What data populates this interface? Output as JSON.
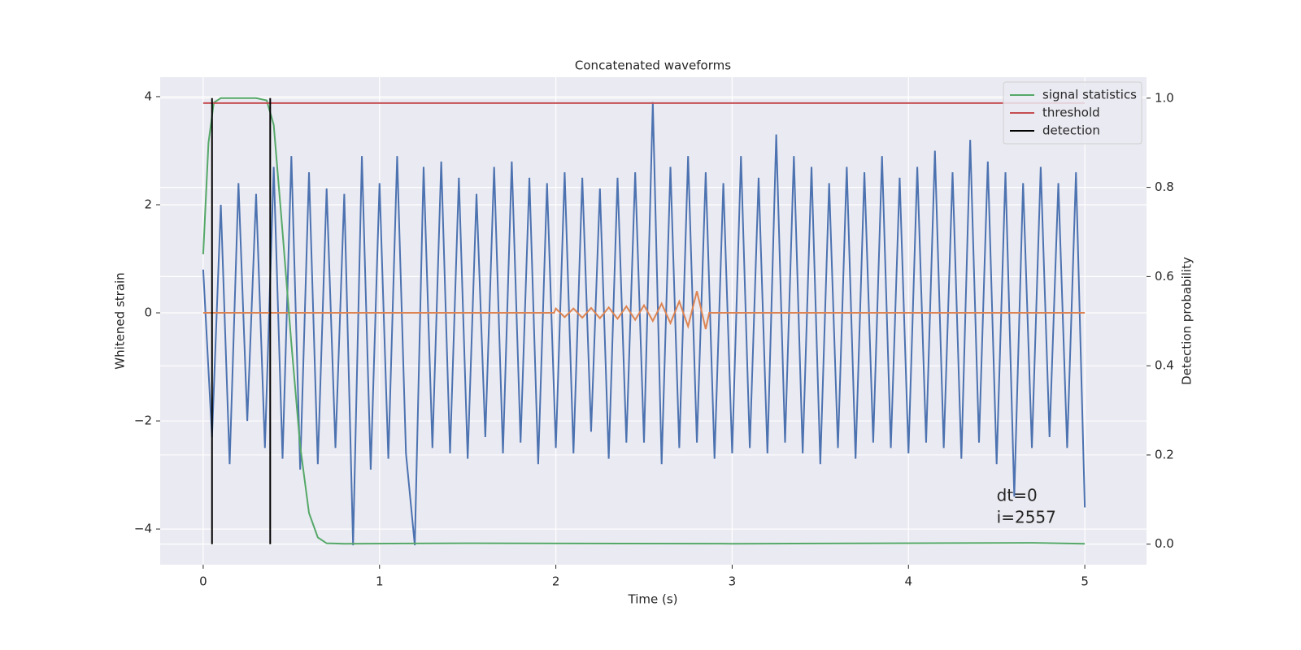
{
  "chart_data": {
    "type": "line",
    "title": "Concatenated waveforms",
    "xlabel": "Time (s)",
    "ylabel": "Whitened strain",
    "y2label": "Detection probability",
    "xlim": [
      -0.244,
      5.35
    ],
    "xticks": [
      0,
      1,
      2,
      3,
      4,
      5
    ],
    "ylim": [
      -4.66,
      4.36
    ],
    "yticks": [
      {
        "value": -4,
        "label": "−4"
      },
      {
        "value": -2,
        "label": "−2"
      },
      0,
      2,
      4
    ],
    "y2lim": [
      -0.046,
      1.047
    ],
    "y2ticks": [
      {
        "value": 0,
        "label": "0.0"
      },
      0.2,
      0.4,
      0.6,
      0.8,
      {
        "value": 1,
        "label": "1.0"
      }
    ],
    "grid": true,
    "legend": "upper right",
    "series": [
      {
        "color": "#4c72b0",
        "x": [
          0,
          0.05,
          0.1,
          0.15,
          0.2,
          0.25,
          0.3,
          0.35,
          0.4,
          0.45,
          0.5,
          0.55,
          0.6,
          0.65,
          0.7,
          0.75,
          0.8,
          0.85,
          0.9,
          0.95,
          1.0,
          1.05,
          1.1,
          1.15,
          1.2,
          1.25,
          1.3,
          1.35,
          1.4,
          1.45,
          1.5,
          1.55,
          1.6,
          1.65,
          1.7,
          1.75,
          1.8,
          1.85,
          1.9,
          1.95,
          2.0,
          2.05,
          2.1,
          2.15,
          2.2,
          2.25,
          2.3,
          2.35,
          2.4,
          2.45,
          2.5,
          2.55,
          2.6,
          2.65,
          2.7,
          2.75,
          2.8,
          2.85,
          2.9,
          2.95,
          3.0,
          3.05,
          3.1,
          3.15,
          3.2,
          3.25,
          3.3,
          3.35,
          3.4,
          3.45,
          3.5,
          3.55,
          3.6,
          3.65,
          3.7,
          3.75,
          3.8,
          3.85,
          3.9,
          3.95,
          4.0,
          4.05,
          4.1,
          4.15,
          4.2,
          4.25,
          4.3,
          4.35,
          4.4,
          4.45,
          4.5,
          4.55,
          4.6,
          4.65,
          4.7,
          4.75,
          4.8,
          4.85,
          4.9,
          4.95,
          5.0
        ],
        "values": [
          0.8,
          -2.3,
          2.0,
          -2.8,
          2.4,
          -2.0,
          2.2,
          -2.5,
          2.7,
          -2.7,
          2.9,
          -2.9,
          2.6,
          -2.8,
          2.3,
          -2.5,
          2.2,
          -4.3,
          2.9,
          -2.9,
          2.4,
          -2.7,
          2.9,
          -2.6,
          -4.3,
          2.7,
          -2.5,
          2.8,
          -2.6,
          2.5,
          -2.7,
          2.2,
          -2.3,
          2.7,
          -2.6,
          2.8,
          -2.4,
          2.5,
          -2.8,
          2.4,
          -2.5,
          2.6,
          -2.6,
          2.5,
          -2.2,
          2.3,
          -2.7,
          2.5,
          -2.4,
          2.6,
          -2.4,
          3.9,
          -2.8,
          2.7,
          -2.5,
          2.9,
          -2.4,
          2.6,
          -2.7,
          2.4,
          -2.6,
          2.9,
          -2.5,
          2.5,
          -2.6,
          3.3,
          -2.4,
          2.9,
          -2.6,
          2.7,
          -2.8,
          2.4,
          -2.5,
          2.7,
          -2.7,
          2.6,
          -2.4,
          2.9,
          -2.5,
          2.5,
          -2.6,
          2.7,
          -2.4,
          3.0,
          -2.5,
          2.6,
          -2.7,
          3.2,
          -2.4,
          2.8,
          -2.8,
          2.6,
          -3.4,
          2.4,
          -2.5,
          2.7,
          -2.3,
          2.4,
          -2.5,
          2.6,
          -3.6
        ]
      },
      {
        "color": "#dd8452",
        "x": [
          0,
          1.99,
          2.0,
          2.05,
          2.1,
          2.15,
          2.2,
          2.25,
          2.3,
          2.35,
          2.4,
          2.45,
          2.5,
          2.55,
          2.6,
          2.65,
          2.7,
          2.75,
          2.8,
          2.85,
          2.87,
          5
        ],
        "values": [
          0,
          0,
          0.08,
          -0.08,
          0.08,
          -0.09,
          0.09,
          -0.1,
          0.1,
          -0.11,
          0.12,
          -0.13,
          0.14,
          -0.15,
          0.17,
          -0.19,
          0.21,
          -0.25,
          0.4,
          -0.3,
          0,
          0
        ]
      },
      {
        "name": "signal statistics",
        "color": "#55a868",
        "axis": "y2",
        "x": [
          0,
          0.03,
          0.06,
          0.1,
          0.2,
          0.3,
          0.36,
          0.4,
          0.45,
          0.5,
          0.55,
          0.6,
          0.65,
          0.7,
          0.8,
          1.5,
          3,
          4.7,
          5
        ],
        "values": [
          0.65,
          0.9,
          0.99,
          1.0,
          1.0,
          1.0,
          0.995,
          0.94,
          0.7,
          0.45,
          0.22,
          0.07,
          0.015,
          0.002,
          0.001,
          0.002,
          0.001,
          0.003,
          0.001
        ]
      },
      {
        "name": "threshold",
        "color": "#c44e52",
        "axis": "y2",
        "x": [
          0,
          5
        ],
        "values": [
          0.989,
          0.989
        ]
      },
      {
        "name": "detection",
        "color": "#000000",
        "axis": "y2",
        "type": "vlines",
        "x": [
          0.05,
          0.38
        ],
        "ymin": 0,
        "ymax": 1
      }
    ],
    "annotations": [
      {
        "text": "dt=0",
        "x": 4.5,
        "y": -3.4
      },
      {
        "text": "i=2557",
        "x": 4.5,
        "y": -3.8
      }
    ]
  }
}
